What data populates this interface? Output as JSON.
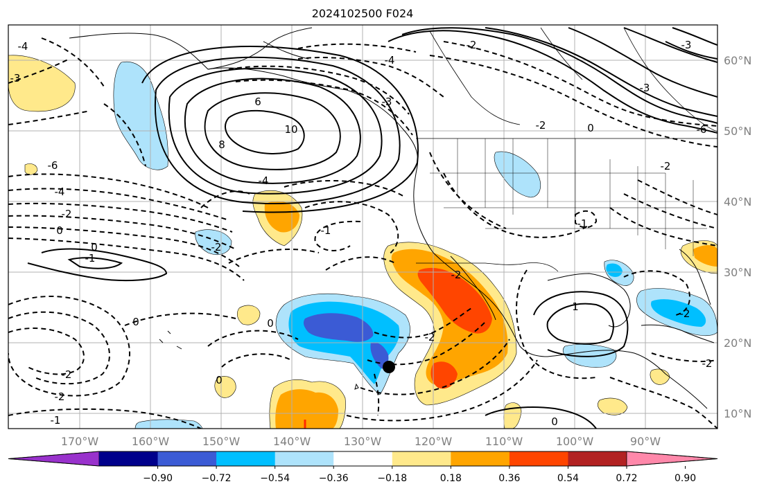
{
  "title": "2024102500 F024",
  "map": {
    "lon_labels": [
      "170°W",
      "160°W",
      "150°W",
      "140°W",
      "130°W",
      "120°W",
      "110°W",
      "100°W",
      "90°W"
    ],
    "lat_labels": [
      "60°N",
      "50°N",
      "40°N",
      "30°N",
      "20°N",
      "10°N"
    ],
    "contour_labels": [
      "-4",
      "-3",
      "-6",
      "-4",
      "-2",
      "0",
      "0",
      "-1",
      "-2",
      "6",
      "10",
      "8",
      "-4",
      "-2",
      "-1",
      "-2",
      "0",
      "-2",
      "-2",
      "-1",
      "0",
      "0",
      "-2",
      "1",
      "0",
      "-2",
      "-2",
      "-4",
      "-3",
      "-1",
      "-2",
      "-3",
      "0",
      "-2",
      "-3",
      "-6"
    ],
    "colors": {
      "land_outline": "#000000",
      "grid": "#b0b0b0"
    }
  },
  "colorbar": {
    "tick_labels": [
      "−0.90",
      "−0.72",
      "−0.54",
      "−0.36",
      "−0.18",
      "0.18",
      "0.36",
      "0.54",
      "0.72",
      "0.90"
    ],
    "colors": [
      "#9932cc",
      "#00008b",
      "#3b5bd5",
      "#00bfff",
      "#aee3fb",
      "#ffffff",
      "#ffe98b",
      "#ffa500",
      "#ff4500",
      "#b22222",
      "#ff88aa"
    ]
  }
}
